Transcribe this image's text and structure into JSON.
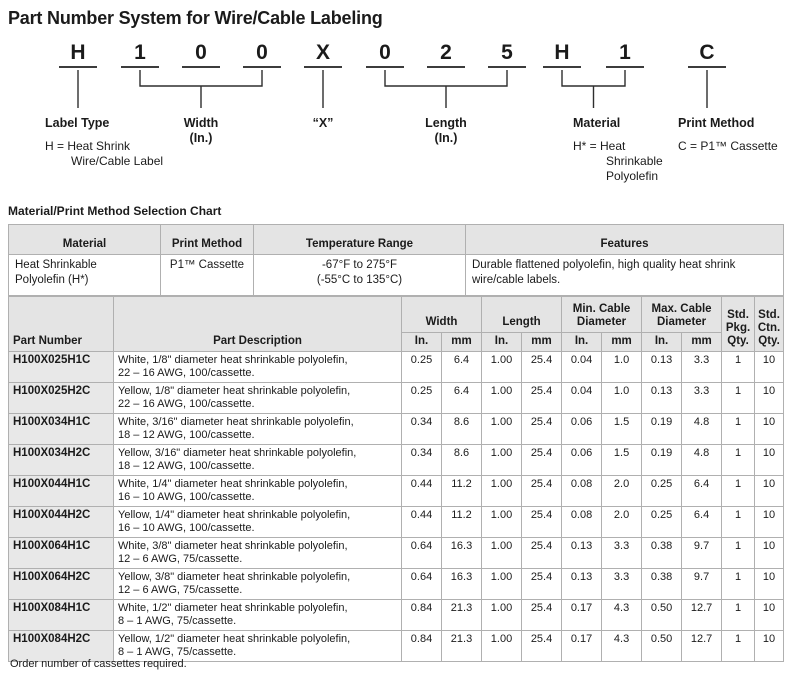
{
  "page": {
    "title": "Part Number System for Wire/Cable Labeling",
    "footnote": "Order number of cassettes required."
  },
  "diagram": {
    "characters": [
      "H",
      "1",
      "0",
      "0",
      "X",
      "0",
      "2",
      "5",
      "H",
      "1",
      "C"
    ],
    "label_type": {
      "label": "Label Type",
      "line1": "H = Heat Shrink",
      "line2": "Wire/Cable Label"
    },
    "width": {
      "label": "Width",
      "unit": "(In.)"
    },
    "x": {
      "label": "“X”"
    },
    "length": {
      "label": "Length",
      "unit": "(In.)"
    },
    "material": {
      "label": "Material",
      "line1": "H* = Heat",
      "line2": "Shrinkable",
      "line3": "Polyolefin"
    },
    "print_method": {
      "label": "Print Method",
      "line1": "C = P1™ Cassette"
    }
  },
  "selection_chart": {
    "heading": "Material/Print Method Selection Chart",
    "headers": {
      "material": "Material",
      "print_method": "Print Method",
      "temperature_range": "Temperature Range",
      "features": "Features"
    },
    "row": {
      "material": "Heat Shrinkable\nPolyolefin (H*)",
      "print_method": "P1™ Cassette",
      "temperature_range": "-67°F to 275°F\n(-55°C to 135°C)",
      "features": "Durable flattened polyolefin, high quality heat shrink\nwire/cable labels."
    }
  },
  "parts_table": {
    "headers": {
      "part_number": "Part Number",
      "part_description": "Part Description",
      "width": "Width",
      "length": "Length",
      "min_cable_diameter": "Min. Cable Diameter",
      "max_cable_diameter": "Max. Cable Diameter",
      "std_pkg_qty": "Std. Pkg. Qty.",
      "std_ctn_qty": "Std. Ctn. Qty.",
      "in": "In.",
      "mm": "mm"
    },
    "rows": [
      {
        "part_number": "H100X025H1C",
        "description": "White, 1/8\" diameter heat shrinkable polyolefin,\n22 – 16 AWG, 100/cassette.",
        "width_in": "0.25",
        "width_mm": "6.4",
        "length_in": "1.00",
        "length_mm": "25.4",
        "min_in": "0.04",
        "min_mm": "1.0",
        "max_in": "0.13",
        "max_mm": "3.3",
        "pkg_qty": "1",
        "ctn_qty": "10"
      },
      {
        "part_number": "H100X025H2C",
        "description": "Yellow, 1/8\" diameter heat shrinkable polyolefin,\n22 – 16 AWG, 100/cassette.",
        "width_in": "0.25",
        "width_mm": "6.4",
        "length_in": "1.00",
        "length_mm": "25.4",
        "min_in": "0.04",
        "min_mm": "1.0",
        "max_in": "0.13",
        "max_mm": "3.3",
        "pkg_qty": "1",
        "ctn_qty": "10"
      },
      {
        "part_number": "H100X034H1C",
        "description": "White, 3/16\" diameter heat shrinkable polyolefin,\n18 – 12 AWG, 100/cassette.",
        "width_in": "0.34",
        "width_mm": "8.6",
        "length_in": "1.00",
        "length_mm": "25.4",
        "min_in": "0.06",
        "min_mm": "1.5",
        "max_in": "0.19",
        "max_mm": "4.8",
        "pkg_qty": "1",
        "ctn_qty": "10"
      },
      {
        "part_number": "H100X034H2C",
        "description": "Yellow, 3/16\" diameter heat shrinkable polyolefin,\n18 – 12 AWG, 100/cassette.",
        "width_in": "0.34",
        "width_mm": "8.6",
        "length_in": "1.00",
        "length_mm": "25.4",
        "min_in": "0.06",
        "min_mm": "1.5",
        "max_in": "0.19",
        "max_mm": "4.8",
        "pkg_qty": "1",
        "ctn_qty": "10"
      },
      {
        "part_number": "H100X044H1C",
        "description": "White, 1/4\" diameter heat shrinkable polyolefin,\n16 – 10 AWG, 100/cassette.",
        "width_in": "0.44",
        "width_mm": "11.2",
        "length_in": "1.00",
        "length_mm": "25.4",
        "min_in": "0.08",
        "min_mm": "2.0",
        "max_in": "0.25",
        "max_mm": "6.4",
        "pkg_qty": "1",
        "ctn_qty": "10"
      },
      {
        "part_number": "H100X044H2C",
        "description": "Yellow, 1/4\" diameter heat shrinkable polyolefin,\n16 – 10 AWG, 100/cassette.",
        "width_in": "0.44",
        "width_mm": "11.2",
        "length_in": "1.00",
        "length_mm": "25.4",
        "min_in": "0.08",
        "min_mm": "2.0",
        "max_in": "0.25",
        "max_mm": "6.4",
        "pkg_qty": "1",
        "ctn_qty": "10"
      },
      {
        "part_number": "H100X064H1C",
        "description": "White, 3/8\" diameter heat shrinkable polyolefin,\n12 – 6 AWG, 75/cassette.",
        "width_in": "0.64",
        "width_mm": "16.3",
        "length_in": "1.00",
        "length_mm": "25.4",
        "min_in": "0.13",
        "min_mm": "3.3",
        "max_in": "0.38",
        "max_mm": "9.7",
        "pkg_qty": "1",
        "ctn_qty": "10"
      },
      {
        "part_number": "H100X064H2C",
        "description": "Yellow, 3/8\" diameter heat shrinkable polyolefin,\n12 – 6 AWG, 75/cassette.",
        "width_in": "0.64",
        "width_mm": "16.3",
        "length_in": "1.00",
        "length_mm": "25.4",
        "min_in": "0.13",
        "min_mm": "3.3",
        "max_in": "0.38",
        "max_mm": "9.7",
        "pkg_qty": "1",
        "ctn_qty": "10"
      },
      {
        "part_number": "H100X084H1C",
        "description": "White, 1/2\" diameter heat shrinkable polyolefin,\n8 – 1 AWG, 75/cassette.",
        "width_in": "0.84",
        "width_mm": "21.3",
        "length_in": "1.00",
        "length_mm": "25.4",
        "min_in": "0.17",
        "min_mm": "4.3",
        "max_in": "0.50",
        "max_mm": "12.7",
        "pkg_qty": "1",
        "ctn_qty": "10"
      },
      {
        "part_number": "H100X084H2C",
        "description": "Yellow, 1/2\" diameter heat shrinkable polyolefin,\n8 – 1 AWG, 75/cassette.",
        "width_in": "0.84",
        "width_mm": "21.3",
        "length_in": "1.00",
        "length_mm": "25.4",
        "min_in": "0.17",
        "min_mm": "4.3",
        "max_in": "0.50",
        "max_mm": "12.7",
        "pkg_qty": "1",
        "ctn_qty": "10"
      }
    ]
  }
}
